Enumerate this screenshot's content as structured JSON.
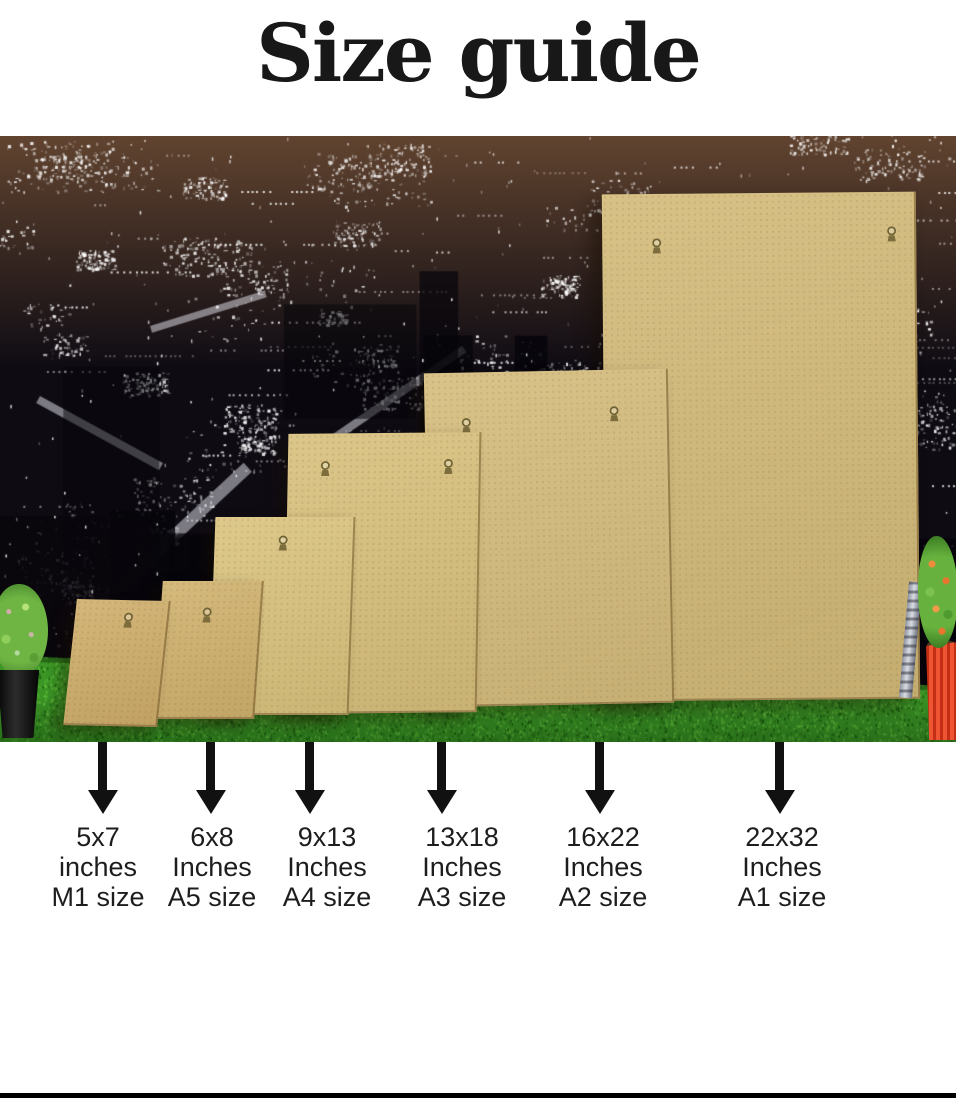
{
  "title": "Size guide",
  "sizes": [
    {
      "dimensions": "5x7",
      "unit": "inches",
      "standard": "M1 size"
    },
    {
      "dimensions": "6x8",
      "unit": "Inches",
      "standard": "A5 size"
    },
    {
      "dimensions": "9x13",
      "unit": "Inches",
      "standard": "A4 size"
    },
    {
      "dimensions": "13x18",
      "unit": "Inches",
      "standard": "A3 size"
    },
    {
      "dimensions": "16x22",
      "unit": "Inches",
      "standard": "A2 size"
    },
    {
      "dimensions": "22x32",
      "unit": "Inches",
      "standard": "A1 size"
    }
  ],
  "scene": {
    "board_color": "#d3ba78",
    "grass_color": "#3b9626",
    "backdrop_color": "#0e0b13",
    "left_pot_color": "#181818",
    "right_pot_color": "#e23a1e",
    "arrow_color": "#111111",
    "title_color": "#181818"
  }
}
